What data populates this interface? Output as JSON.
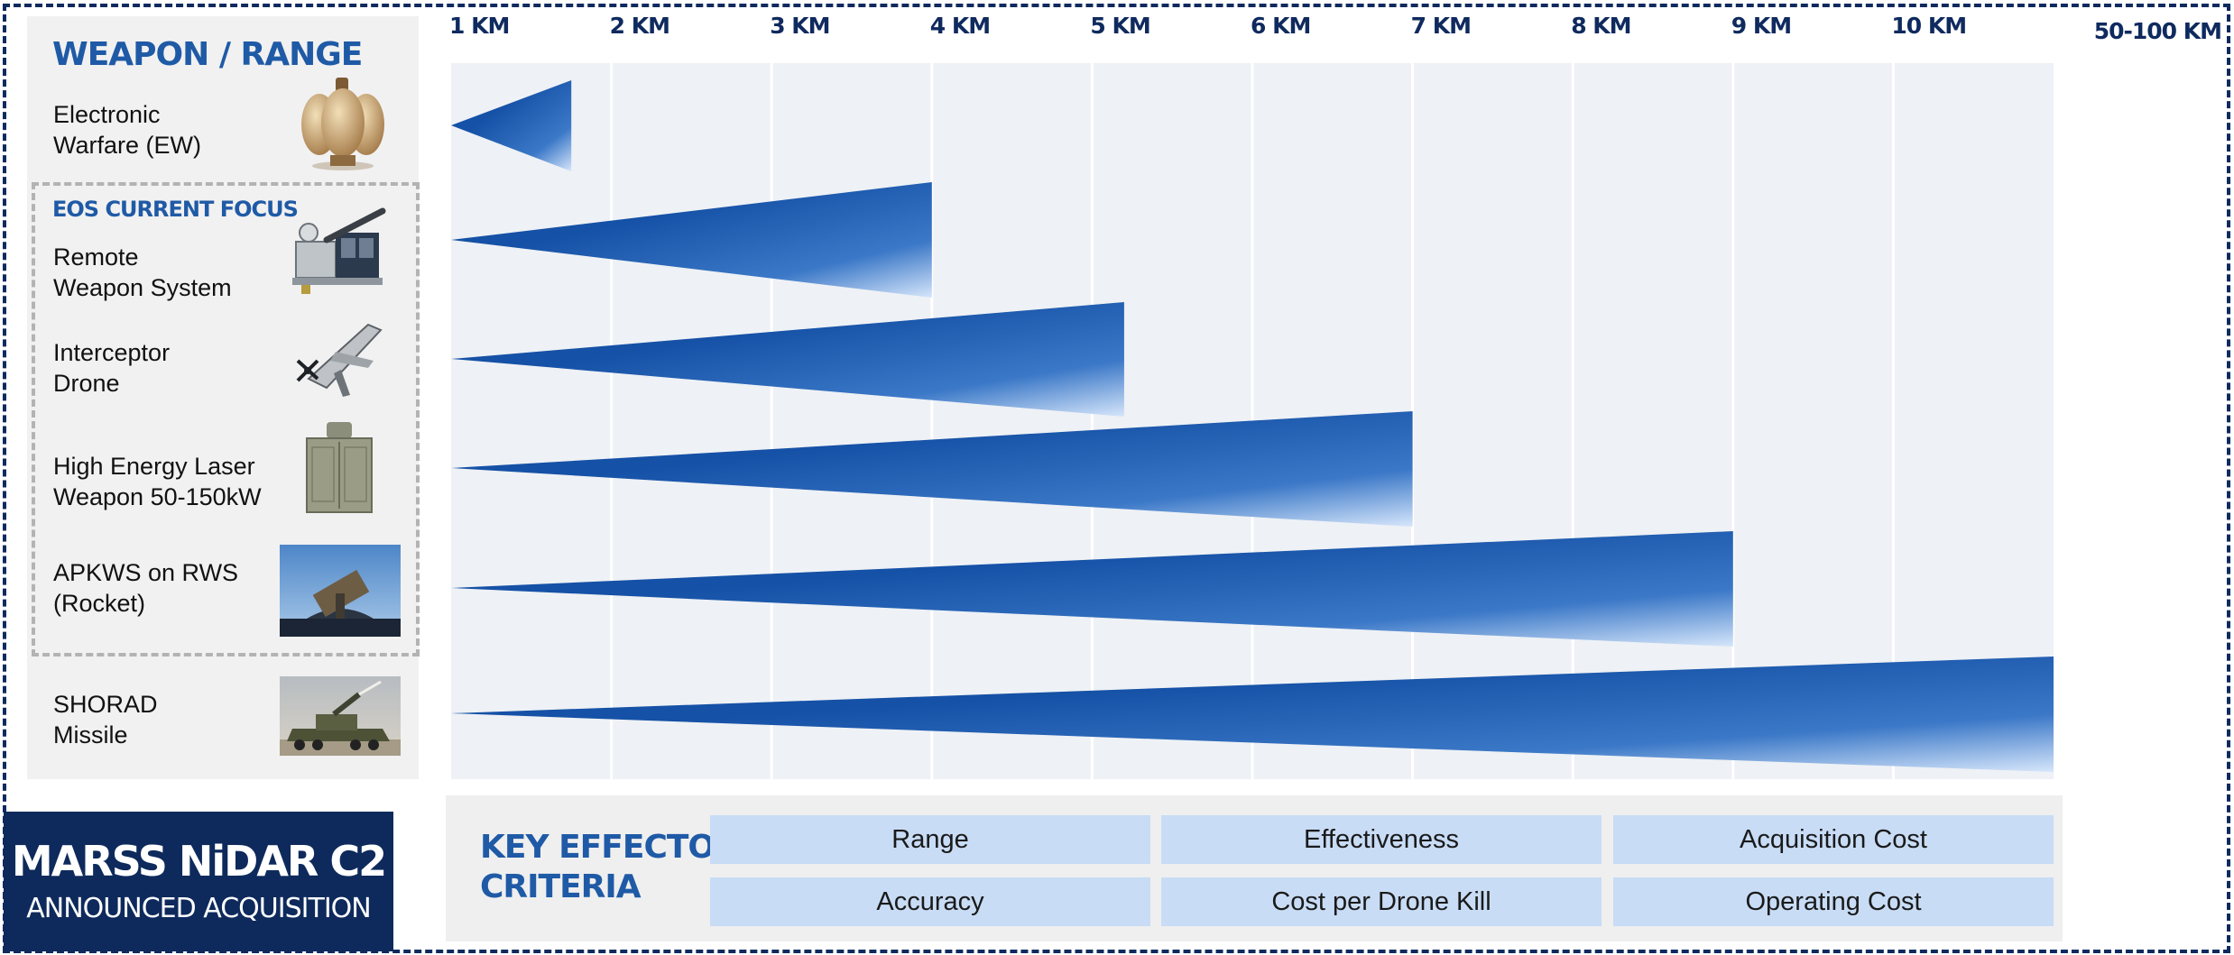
{
  "colors": {
    "navy": "#0f2a5e",
    "accent_blue": "#1f5aa6",
    "wedge_dark": "#1551a6",
    "wedge_light": "#d6e6fb",
    "criteria_bg": "#c8dcf5",
    "panel_gray": "#f1f1f1",
    "chart_bg": "#eef1f5"
  },
  "headings": {
    "weapon_range": "WEAPON / RANGE",
    "eos_focus": "EOS CURRENT FOCUS",
    "key_criteria": "KEY  EFFECTOR\nCRITERIA"
  },
  "weapons": [
    {
      "label": "Electronic\nWarfare (EW)",
      "icon": "ew-sensor-image"
    },
    {
      "label": "Remote\nWeapon System",
      "icon": "remote-weapon-system-image"
    },
    {
      "label": "Interceptor\nDrone",
      "icon": "interceptor-drone-image"
    },
    {
      "label": "High Energy Laser\nWeapon 50-150kW",
      "icon": "laser-weapon-image"
    },
    {
      "label": "APKWS on RWS\n(Rocket)",
      "icon": "apkws-rocket-image"
    },
    {
      "label": "SHORAD\nMissile",
      "icon": "shorad-missile-image"
    }
  ],
  "chart_data": {
    "type": "bar",
    "title": "WEAPON / RANGE",
    "x_tick_labels": [
      "1 KM",
      "2 KM",
      "3 KM",
      "4 KM",
      "5 KM",
      "6 KM",
      "7 KM",
      "8 KM",
      "9 KM",
      "10 KM",
      "50-100 KM"
    ],
    "xlim": [
      1,
      11
    ],
    "grid": true,
    "categories": [
      "Electronic Warfare (EW)",
      "Remote Weapon System",
      "Interceptor Drone",
      "High Energy Laser Weapon 50-150kW",
      "APKWS on RWS (Rocket)",
      "SHORAD Missile"
    ],
    "values": [
      1.75,
      4.0,
      5.2,
      7.0,
      9.0,
      11.0
    ],
    "value_labels": [
      "~1.75 KM",
      "4 KM",
      "~5.2 KM",
      "7 KM",
      "9 KM",
      "50-100 KM"
    ]
  },
  "criteria": [
    "Range",
    "Effectiveness",
    "Acquisition Cost",
    "Accuracy",
    "Cost per Drone Kill",
    "Operating Cost"
  ],
  "marss": {
    "title": "MARSS NiDAR C2",
    "subtitle": "ANNOUNCED ACQUISITION"
  }
}
